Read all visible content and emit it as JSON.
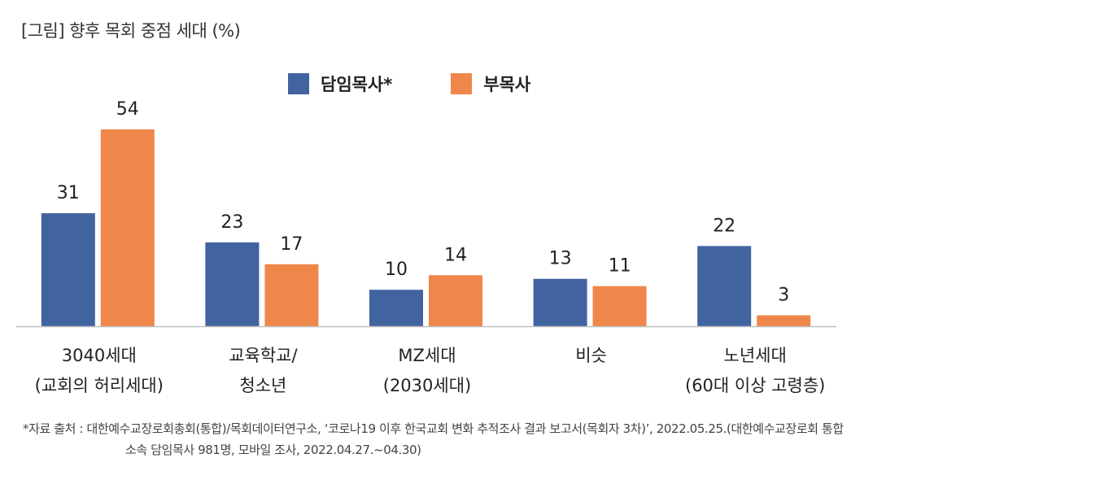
{
  "chart_data": {
    "type": "bar",
    "title": "[그림] 향후 목회 중점 세대 (%)",
    "categories": [
      [
        "3040세대",
        "(교회의 허리세대)"
      ],
      [
        "교육학교/",
        "청소년"
      ],
      [
        "MZ세대",
        "(2030세대)"
      ],
      [
        "비슷",
        ""
      ],
      [
        "노년세대",
        "(60대 이상 고령층)"
      ]
    ],
    "series": [
      {
        "name": "담임목사*",
        "color": "#4164a0",
        "values": [
          31,
          23,
          10,
          13,
          22
        ]
      },
      {
        "name": "부목사",
        "color": "#f0874a",
        "values": [
          54,
          17,
          14,
          11,
          3
        ]
      }
    ],
    "xlabel": "",
    "ylabel": "",
    "ylim": [
      0,
      54
    ],
    "grid": false,
    "legend": "top-center"
  },
  "footnote": {
    "line1": "*자료 출처 : 대한예수교장로회총회(통합)/목회데이터연구소, ‘코로나19 이후 한국교회 변화 추적조사 결과 보고서(목회자 3차)’, 2022.05.25.(대한예수교장로회 통합",
    "line2": "소속 담임목사 981명, 모바일 조사, 2022.04.27.~04.30)"
  }
}
